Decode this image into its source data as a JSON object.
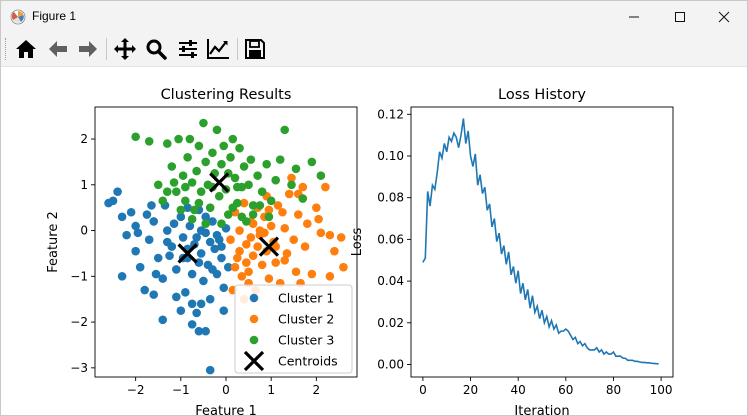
{
  "window": {
    "title": "Figure 1",
    "controls": [
      "minimize",
      "maximize",
      "close"
    ]
  },
  "toolbar": {
    "buttons": [
      {
        "name": "home",
        "icon": "home-icon"
      },
      {
        "name": "back",
        "icon": "arrow-left-icon"
      },
      {
        "name": "forward",
        "icon": "arrow-right-icon"
      },
      {
        "name": "pan",
        "icon": "move-icon"
      },
      {
        "name": "zoom",
        "icon": "magnifier-icon"
      },
      {
        "name": "subplots",
        "icon": "sliders-icon"
      },
      {
        "name": "customize",
        "icon": "line-chart-icon"
      },
      {
        "name": "save",
        "icon": "floppy-disk-icon"
      }
    ]
  },
  "colors": {
    "c1": "#1f77b4",
    "c2": "#ff7f0e",
    "c3": "#2ca02c",
    "centroid": "#000000"
  },
  "chart_data": [
    {
      "type": "scatter",
      "title": "Clustering Results",
      "xlabel": "Feature 1",
      "ylabel": "Feature 2",
      "xlim": [
        -2.9,
        2.9
      ],
      "ylim": [
        -3.2,
        2.7
      ],
      "xticks": [
        "−2",
        "−1",
        "0",
        "1",
        "2"
      ],
      "yticks": [
        "2",
        "1",
        "0",
        "−1",
        "−2",
        "−3"
      ],
      "legend_position": "lower-right",
      "series": [
        {
          "name": "Cluster 1",
          "color": "#1f77b4",
          "points": [
            [
              -2.6,
              0.6
            ],
            [
              -2.4,
              0.85
            ],
            [
              -2.3,
              0.3
            ],
            [
              -2.2,
              -0.1
            ],
            [
              -2.1,
              0.4
            ],
            [
              -2.3,
              -1.0
            ],
            [
              -2.0,
              -0.45
            ],
            [
              -1.9,
              -0.8
            ],
            [
              -1.7,
              -0.2
            ],
            [
              -1.6,
              0.2
            ],
            [
              -1.8,
              -1.3
            ],
            [
              -1.5,
              -0.6
            ],
            [
              -1.4,
              -1.05
            ],
            [
              -1.35,
              0.55
            ],
            [
              -1.3,
              0.0
            ],
            [
              -1.2,
              -0.35
            ],
            [
              -1.6,
              -1.4
            ],
            [
              -1.1,
              -0.85
            ],
            [
              -1.0,
              0.3
            ],
            [
              -0.95,
              -0.15
            ],
            [
              -0.9,
              -1.35
            ],
            [
              -0.85,
              -0.6
            ],
            [
              -0.8,
              0.1
            ],
            [
              -0.75,
              -0.95
            ],
            [
              -0.7,
              -0.3
            ],
            [
              -0.65,
              -1.8
            ],
            [
              -0.6,
              0.45
            ],
            [
              -0.55,
              -0.5
            ],
            [
              -0.5,
              -1.1
            ],
            [
              -0.45,
              -0.05
            ],
            [
              -0.4,
              -0.75
            ],
            [
              -0.35,
              -1.5
            ],
            [
              -0.3,
              0.2
            ],
            [
              -0.25,
              -0.4
            ],
            [
              -0.2,
              -0.95
            ],
            [
              -0.15,
              -0.2
            ],
            [
              -0.1,
              -0.6
            ],
            [
              -0.05,
              -1.25
            ],
            [
              0.0,
              0.05
            ],
            [
              -1.4,
              -1.95
            ],
            [
              -1.0,
              -1.75
            ],
            [
              -0.6,
              -2.2
            ],
            [
              -0.45,
              -2.2
            ],
            [
              -1.3,
              -0.25
            ],
            [
              -1.15,
              0.15
            ],
            [
              -0.35,
              -3.05
            ],
            [
              -0.75,
              -2.05
            ],
            [
              -0.55,
              -1.6
            ],
            [
              -0.85,
              -0.4
            ],
            [
              -0.45,
              0.3
            ],
            [
              -0.2,
              -0.1
            ],
            [
              -1.65,
              0.55
            ],
            [
              -2.0,
              0.1
            ],
            [
              -1.55,
              -0.95
            ],
            [
              -1.25,
              -0.55
            ],
            [
              -0.95,
              -0.6
            ],
            [
              -0.65,
              -0.15
            ],
            [
              -0.3,
              -0.85
            ],
            [
              -0.1,
              -0.35
            ],
            [
              0.05,
              -0.8
            ],
            [
              -1.75,
              0.35
            ],
            [
              -0.75,
              -1.6
            ],
            [
              -1.1,
              -1.45
            ],
            [
              -0.55,
              0.0
            ],
            [
              -0.35,
              -0.25
            ],
            [
              -0.6,
              -0.7
            ],
            [
              -0.05,
              -1.75
            ],
            [
              -2.5,
              0.65
            ],
            [
              -1.95,
              -0.05
            ],
            [
              -0.85,
              0.5
            ]
          ]
        },
        {
          "name": "Cluster 2",
          "color": "#ff7f0e",
          "points": [
            [
              0.1,
              -0.2
            ],
            [
              0.2,
              0.4
            ],
            [
              0.25,
              -0.6
            ],
            [
              0.3,
              0.0
            ],
            [
              0.35,
              -1.0
            ],
            [
              0.4,
              0.6
            ],
            [
              0.45,
              -0.3
            ],
            [
              0.5,
              -0.9
            ],
            [
              0.55,
              0.2
            ],
            [
              0.6,
              -0.55
            ],
            [
              0.65,
              -1.3
            ],
            [
              0.7,
              0.5
            ],
            [
              0.75,
              -0.1
            ],
            [
              0.8,
              -0.75
            ],
            [
              0.85,
              0.3
            ],
            [
              0.9,
              -0.45
            ],
            [
              0.95,
              -1.05
            ],
            [
              1.0,
              0.1
            ],
            [
              1.05,
              -0.25
            ],
            [
              1.1,
              -0.7
            ],
            [
              1.15,
              0.55
            ],
            [
              1.2,
              -1.15
            ],
            [
              1.3,
              0.05
            ],
            [
              1.35,
              -0.5
            ],
            [
              1.4,
              0.8
            ],
            [
              1.5,
              -0.2
            ],
            [
              1.55,
              -0.9
            ],
            [
              1.6,
              0.35
            ],
            [
              1.7,
              0.95
            ],
            [
              1.75,
              -0.35
            ],
            [
              1.8,
              0.15
            ],
            [
              1.9,
              -0.95
            ],
            [
              2.0,
              0.5
            ],
            [
              2.1,
              -0.05
            ],
            [
              2.2,
              0.95
            ],
            [
              2.3,
              -1.0
            ],
            [
              2.4,
              -0.45
            ],
            [
              2.6,
              -0.8
            ],
            [
              2.55,
              -0.15
            ],
            [
              2.3,
              -0.1
            ],
            [
              0.15,
              -1.3
            ],
            [
              0.4,
              -1.5
            ],
            [
              0.45,
              -0.7
            ],
            [
              0.85,
              -0.05
            ],
            [
              1.25,
              0.4
            ],
            [
              1.65,
              -1.15
            ],
            [
              0.55,
              -0.15
            ],
            [
              0.7,
              -0.35
            ],
            [
              0.9,
              0.75
            ],
            [
              1.45,
              1.15
            ],
            [
              1.6,
              0.8
            ],
            [
              2.05,
              0.25
            ],
            [
              0.3,
              -0.45
            ],
            [
              0.6,
              0.15
            ],
            [
              0.95,
              0.45
            ],
            [
              1.1,
              -0.35
            ],
            [
              0.5,
              -1.15
            ],
            [
              0.75,
              0.0
            ],
            [
              0.2,
              -0.8
            ],
            [
              1.3,
              -0.65
            ]
          ]
        },
        {
          "name": "Cluster 3",
          "color": "#2ca02c",
          "points": [
            [
              -2.0,
              2.05
            ],
            [
              -1.7,
              1.95
            ],
            [
              -1.3,
              1.9
            ],
            [
              -1.2,
              1.4
            ],
            [
              -1.1,
              0.85
            ],
            [
              -1.05,
              2.0
            ],
            [
              -0.95,
              1.2
            ],
            [
              -0.9,
              0.65
            ],
            [
              -0.85,
              1.6
            ],
            [
              -0.8,
              2.0
            ],
            [
              -0.75,
              1.05
            ],
            [
              -0.7,
              0.45
            ],
            [
              -0.65,
              1.3
            ],
            [
              -0.6,
              1.85
            ],
            [
              -0.55,
              0.85
            ],
            [
              -0.5,
              2.35
            ],
            [
              -0.45,
              1.5
            ],
            [
              -0.4,
              1.0
            ],
            [
              -0.35,
              0.5
            ],
            [
              -0.3,
              1.7
            ],
            [
              -0.25,
              1.25
            ],
            [
              -0.2,
              2.2
            ],
            [
              -0.15,
              0.75
            ],
            [
              -0.1,
              1.45
            ],
            [
              -0.05,
              1.85
            ],
            [
              0.0,
              0.9
            ],
            [
              0.05,
              0.35
            ],
            [
              0.1,
              1.6
            ],
            [
              0.15,
              2.0
            ],
            [
              0.2,
              1.15
            ],
            [
              0.25,
              0.6
            ],
            [
              0.3,
              1.8
            ],
            [
              0.35,
              0.95
            ],
            [
              0.4,
              1.4
            ],
            [
              0.45,
              0.2
            ],
            [
              0.5,
              1.0
            ],
            [
              0.55,
              1.55
            ],
            [
              0.6,
              0.55
            ],
            [
              0.7,
              1.2
            ],
            [
              0.8,
              0.85
            ],
            [
              0.9,
              1.45
            ],
            [
              1.0,
              0.65
            ],
            [
              1.1,
              1.1
            ],
            [
              1.2,
              1.55
            ],
            [
              1.3,
              2.2
            ],
            [
              1.45,
              1.0
            ],
            [
              1.55,
              1.35
            ],
            [
              1.7,
              0.7
            ],
            [
              1.9,
              1.5
            ],
            [
              2.1,
              1.2
            ],
            [
              -1.5,
              1.0
            ],
            [
              -1.4,
              0.65
            ],
            [
              -1.3,
              0.85
            ],
            [
              -0.9,
              0.95
            ],
            [
              -0.1,
              0.15
            ],
            [
              0.15,
              0.5
            ],
            [
              -0.45,
              0.15
            ],
            [
              -1.0,
              0.45
            ],
            [
              0.35,
              0.3
            ],
            [
              0.6,
              0.35
            ],
            [
              -0.6,
              0.6
            ],
            [
              0.05,
              1.25
            ],
            [
              -0.3,
              0.95
            ],
            [
              0.75,
              0.55
            ],
            [
              -1.15,
              1.05
            ],
            [
              -0.75,
              0.25
            ],
            [
              0.95,
              0.3
            ],
            [
              0.25,
              0.95
            ]
          ]
        },
        {
          "name": "Centroids",
          "color": "#000000",
          "marker": "x",
          "points": [
            [
              -0.85,
              -0.5
            ],
            [
              -0.15,
              1.05
            ],
            [
              0.95,
              -0.35
            ]
          ]
        }
      ]
    },
    {
      "type": "line",
      "title": "Loss History",
      "xlabel": "Iteration",
      "ylabel": "Loss",
      "xlim": [
        -5,
        105
      ],
      "ylim": [
        -0.006,
        0.1235
      ],
      "xticks": [
        "0",
        "20",
        "40",
        "60",
        "80",
        "100"
      ],
      "yticks": [
        "0.12",
        "0.10",
        "0.08",
        "0.06",
        "0.04",
        "0.02",
        "0.00"
      ],
      "series": [
        {
          "name": "",
          "color": "#1f77b4",
          "x": [
            0,
            1,
            2,
            3,
            4,
            5,
            6,
            7,
            8,
            9,
            10,
            11,
            12,
            13,
            14,
            15,
            16,
            17,
            18,
            19,
            20,
            21,
            22,
            23,
            24,
            25,
            26,
            27,
            28,
            29,
            30,
            31,
            32,
            33,
            34,
            35,
            36,
            37,
            38,
            39,
            40,
            41,
            42,
            43,
            44,
            45,
            46,
            47,
            48,
            49,
            50,
            51,
            52,
            53,
            54,
            55,
            56,
            57,
            58,
            59,
            60,
            61,
            62,
            63,
            64,
            65,
            66,
            67,
            68,
            69,
            70,
            71,
            72,
            73,
            74,
            75,
            76,
            77,
            78,
            79,
            80,
            81,
            82,
            83,
            84,
            85,
            86,
            87,
            88,
            89,
            90,
            91,
            92,
            93,
            94,
            95,
            96,
            97,
            98,
            99
          ],
          "y": [
            0.049,
            0.051,
            0.083,
            0.076,
            0.086,
            0.084,
            0.092,
            0.102,
            0.099,
            0.106,
            0.102,
            0.109,
            0.107,
            0.111,
            0.109,
            0.104,
            0.11,
            0.118,
            0.106,
            0.112,
            0.1,
            0.095,
            0.101,
            0.086,
            0.091,
            0.082,
            0.085,
            0.074,
            0.077,
            0.066,
            0.07,
            0.059,
            0.063,
            0.053,
            0.057,
            0.048,
            0.054,
            0.043,
            0.047,
            0.039,
            0.045,
            0.034,
            0.039,
            0.031,
            0.036,
            0.027,
            0.033,
            0.025,
            0.028,
            0.022,
            0.026,
            0.02,
            0.023,
            0.018,
            0.021,
            0.017,
            0.019,
            0.015,
            0.016,
            0.016,
            0.017,
            0.016,
            0.014,
            0.012,
            0.013,
            0.01,
            0.011,
            0.009,
            0.01,
            0.008,
            0.007,
            0.007,
            0.007,
            0.008,
            0.006,
            0.007,
            0.005,
            0.006,
            0.005,
            0.005,
            0.006,
            0.004,
            0.004,
            0.004,
            0.003,
            0.003,
            0.002,
            0.002,
            0.002,
            0.0015,
            0.0015,
            0.0012,
            0.001,
            0.001,
            0.0008,
            0.0008,
            0.0006,
            0.0005,
            0.0004,
            0.0003
          ]
        }
      ]
    }
  ]
}
